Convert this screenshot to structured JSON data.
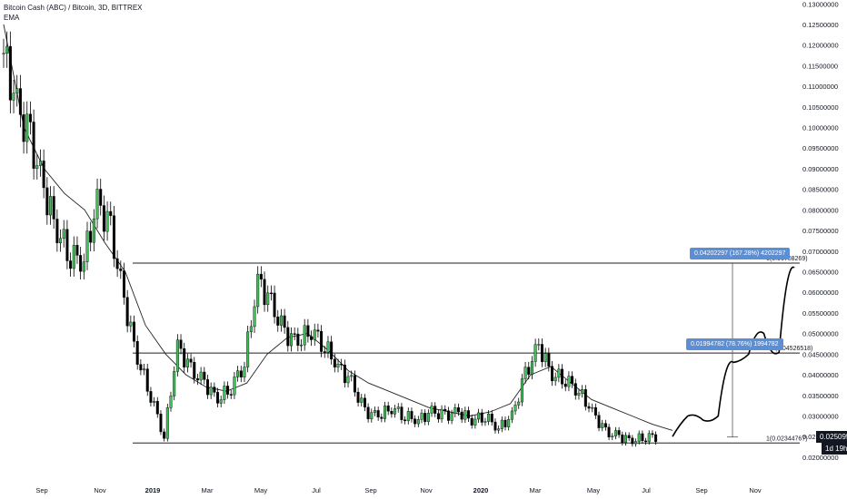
{
  "header": {
    "title": "Bitcoin Cash (ABC) / Bitcoin, 3D, BITTREX",
    "indicator": "EMA"
  },
  "colors": {
    "up": "#3fbf57",
    "down": "#000000",
    "ema": "#222222",
    "level": "#222222",
    "measure_bg": "#5b8ed4",
    "tag_bg": "#131722"
  },
  "annotations": {
    "measure_top": "0.04202297 (167.28%) 4202297",
    "measure_mid": "0.01994782 (78.76%) 1994782",
    "level_top_label": "0(0.06708269)",
    "level_mid_label": "0.5(0.04526518)",
    "level_bot_label": "1(0.02344767)",
    "current_price": "0.02509500",
    "countdown": "1d 19h"
  },
  "chart_data": {
    "type": "candlestick",
    "title": "Bitcoin Cash (ABC) / Bitcoin, 3D, BITTREX",
    "ylim": [
      0.018,
      0.1305
    ],
    "y_ticks": [
      "0.02000000",
      "0.02500000",
      "0.03000000",
      "0.03500000",
      "0.04000000",
      "0.04500000",
      "0.05000000",
      "0.05500000",
      "0.06000000",
      "0.06500000",
      "0.07000000",
      "0.07500000",
      "0.08000000",
      "0.08500000",
      "0.09000000",
      "0.09500000",
      "0.10000000",
      "0.10500000",
      "0.11000000",
      "0.11500000",
      "0.12000000",
      "0.12500000",
      "0.13000000"
    ],
    "x_ticks": [
      "Sep",
      "Nov",
      "2019",
      "Mar",
      "May",
      "Jul",
      "Sep",
      "Nov",
      "2020",
      "Mar",
      "May",
      "Jul",
      "Sep",
      "Nov"
    ],
    "levels": [
      {
        "label": "0",
        "value": 0.06708269
      },
      {
        "label": "0.5",
        "value": 0.04526518
      },
      {
        "label": "1",
        "value": 0.02344767
      }
    ],
    "ema_values": [
      0.125,
      0.1,
      0.09,
      0.084,
      0.08,
      0.072,
      0.065,
      0.052,
      0.045,
      0.04,
      0.037,
      0.036,
      0.038,
      0.045,
      0.049,
      0.05,
      0.046,
      0.041,
      0.038,
      0.036,
      0.034,
      0.032,
      0.031,
      0.03,
      0.031,
      0.033,
      0.04,
      0.042,
      0.038,
      0.034,
      0.032,
      0.03,
      0.028,
      0.0265
    ],
    "close_values": [
      0.118,
      0.105,
      0.097,
      0.085,
      0.075,
      0.069,
      0.068,
      0.082,
      0.075,
      0.058,
      0.044,
      0.035,
      0.025,
      0.047,
      0.041,
      0.038,
      0.034,
      0.037,
      0.043,
      0.063,
      0.057,
      0.05,
      0.048,
      0.051,
      0.047,
      0.042,
      0.038,
      0.031,
      0.03,
      0.032,
      0.03,
      0.029,
      0.031,
      0.03,
      0.031,
      0.029,
      0.03,
      0.027,
      0.03,
      0.04,
      0.047,
      0.04,
      0.039,
      0.036,
      0.031,
      0.026,
      0.025,
      0.024,
      0.025,
      0.025
    ],
    "projection_values": [
      0.025,
      0.03,
      0.029,
      0.03,
      0.043,
      0.045,
      0.05,
      0.0455,
      0.066
    ]
  }
}
